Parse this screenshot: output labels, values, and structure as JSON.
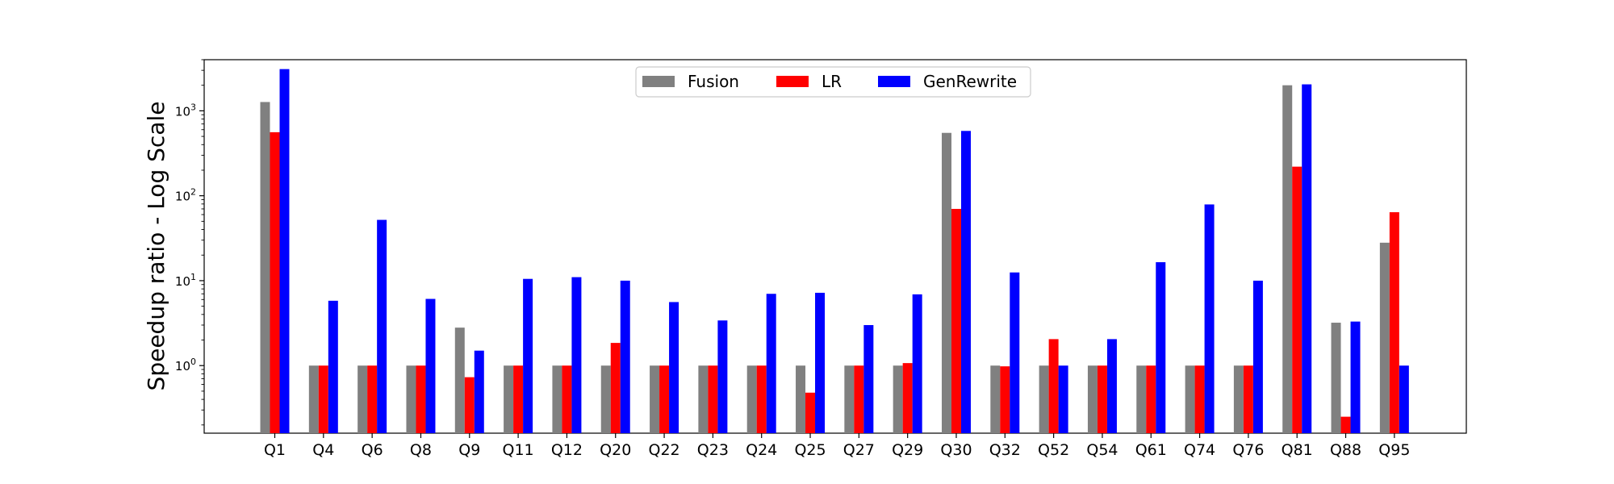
{
  "chart_data": {
    "type": "bar",
    "title": "",
    "xlabel": "",
    "ylabel": "Speedup ratio - Log Scale",
    "yscale": "log",
    "ylim": [
      0.16,
      4000
    ],
    "legend_position": "top-center",
    "categories": [
      "Q1",
      "Q4",
      "Q6",
      "Q8",
      "Q9",
      "Q11",
      "Q12",
      "Q20",
      "Q22",
      "Q23",
      "Q24",
      "Q25",
      "Q27",
      "Q29",
      "Q30",
      "Q32",
      "Q52",
      "Q54",
      "Q61",
      "Q74",
      "Q76",
      "Q81",
      "Q88",
      "Q95"
    ],
    "y_ticks": [
      {
        "value": 1,
        "base": "10",
        "exp": "0"
      },
      {
        "value": 10,
        "base": "10",
        "exp": "1"
      },
      {
        "value": 100,
        "base": "10",
        "exp": "2"
      },
      {
        "value": 1000,
        "base": "10",
        "exp": "3"
      }
    ],
    "series": [
      {
        "name": "Fusion",
        "color": "#808080",
        "values": [
          1270,
          1.0,
          1.0,
          1.0,
          2.8,
          1.0,
          1.0,
          1.0,
          1.0,
          1.0,
          1.0,
          1.0,
          1.0,
          1.0,
          550,
          1.0,
          1.0,
          1.0,
          1.0,
          1.0,
          1.0,
          2000,
          3.2,
          28
        ]
      },
      {
        "name": "LR",
        "color": "#ff0000",
        "values": [
          560,
          1.0,
          1.0,
          1.0,
          0.73,
          1.0,
          1.0,
          1.85,
          1.0,
          1.0,
          1.0,
          0.48,
          1.0,
          1.07,
          70,
          0.98,
          2.05,
          1.0,
          1.0,
          1.0,
          1.0,
          220,
          0.25,
          64
        ]
      },
      {
        "name": "GenRewrite",
        "color": "#0000ff",
        "values": [
          3100,
          5.8,
          52,
          6.1,
          1.5,
          10.5,
          11,
          10,
          5.6,
          3.4,
          7.0,
          7.2,
          3.0,
          6.9,
          580,
          12.5,
          1.0,
          2.05,
          16.5,
          79,
          10,
          2050,
          3.3,
          1.0
        ]
      }
    ]
  }
}
